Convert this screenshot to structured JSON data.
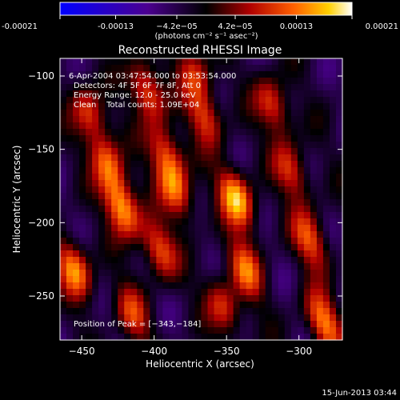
{
  "chart_data": {
    "type": "heatmap",
    "title": "Reconstructed RHESSI Image",
    "xlabel": "Heliocentric X (arcsec)",
    "ylabel": "Heliocentric Y (arcsec)",
    "xlim": [
      -465,
      -270
    ],
    "ylim": [
      -280,
      -88
    ],
    "xticks": [
      -450,
      -400,
      -350,
      -300
    ],
    "xtick_labels": [
      "−450",
      "−400",
      "−350",
      "−300"
    ],
    "yticks": [
      -100,
      -150,
      -200,
      -250
    ],
    "ytick_labels": [
      "−100",
      "−150",
      "−200",
      "−250"
    ],
    "colorbar": {
      "range": [
        -0.00021,
        0.00021
      ],
      "tick_values": [
        -0.00021,
        -0.00013,
        -4.2e-05,
        4.2e-05,
        0.00013,
        0.00021
      ],
      "tick_labels": [
        "-0.00021",
        "-0.00013",
        "−4.2e−05",
        "4.2e−05",
        "0.00013",
        "0.00021"
      ],
      "units_label": "(photons cm⁻² s⁻¹ asec⁻²)"
    },
    "annotations": [
      "6-Apr-2004 03:47:54.000 to 03:53:54.000",
      "Detectors: 4F 5F 6F 7F 8F, Att 0",
      "Energy Range: 12.0 - 25.0 keV",
      "Clean    Total counts: 1.09E+04"
    ],
    "peak_label": "Position of Peak = [−343,−184]",
    "peak": [
      -343,
      -184
    ],
    "bright_spots": [
      {
        "x": -445,
        "y": -125,
        "v": 0.62
      },
      {
        "x": -432,
        "y": -160,
        "v": 0.72
      },
      {
        "x": -422,
        "y": -190,
        "v": 0.9
      },
      {
        "x": -455,
        "y": -232,
        "v": 0.85
      },
      {
        "x": -405,
        "y": -110,
        "v": 0.75
      },
      {
        "x": -392,
        "y": -152,
        "v": 0.66
      },
      {
        "x": -385,
        "y": -178,
        "v": 0.74
      },
      {
        "x": -397,
        "y": -218,
        "v": 0.7
      },
      {
        "x": -365,
        "y": -128,
        "v": 0.6
      },
      {
        "x": -343,
        "y": -184,
        "v": 1.0
      },
      {
        "x": -337,
        "y": -232,
        "v": 0.7
      },
      {
        "x": -352,
        "y": -258,
        "v": 0.6
      },
      {
        "x": -318,
        "y": -120,
        "v": 0.65
      },
      {
        "x": -305,
        "y": -165,
        "v": 0.6
      },
      {
        "x": -292,
        "y": -212,
        "v": 0.68
      },
      {
        "x": -283,
        "y": -268,
        "v": 0.8
      },
      {
        "x": -415,
        "y": -262,
        "v": 0.55
      },
      {
        "x": -372,
        "y": -98,
        "v": 0.55
      }
    ]
  },
  "footer": {
    "timestamp": "15-Jun-2013 03:44"
  }
}
